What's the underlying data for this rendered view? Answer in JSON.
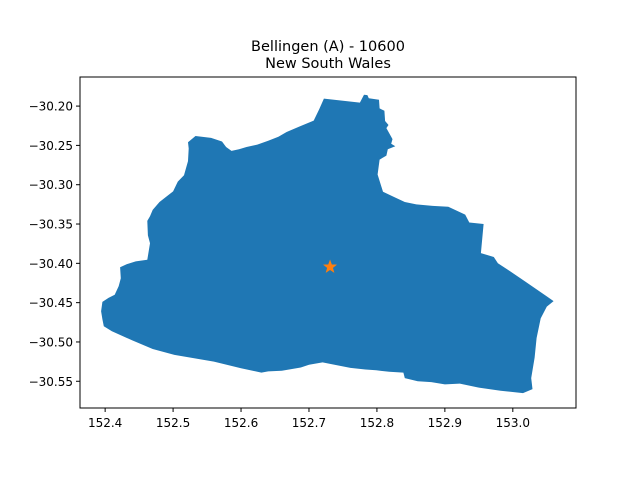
{
  "title": {
    "line1": "Bellingen (A) - 10600",
    "line2": "New South Wales"
  },
  "colors": {
    "region_fill": "#1f77b4",
    "marker": "#ff7f0e",
    "axes": "#000000",
    "background": "#ffffff"
  },
  "chart_data": {
    "type": "map",
    "grid": false,
    "xlim": [
      152.363,
      153.093
    ],
    "ylim": [
      -30.584,
      -30.163
    ],
    "x_ticks": [
      {
        "value": 152.4,
        "label": "152.4"
      },
      {
        "value": 152.5,
        "label": "152.5"
      },
      {
        "value": 152.6,
        "label": "152.6"
      },
      {
        "value": 152.7,
        "label": "152.7"
      },
      {
        "value": 152.8,
        "label": "152.8"
      },
      {
        "value": 152.9,
        "label": "152.9"
      },
      {
        "value": 153.0,
        "label": "153.0"
      }
    ],
    "y_ticks": [
      {
        "value": -30.2,
        "label": "−30.20"
      },
      {
        "value": -30.25,
        "label": "−30.25"
      },
      {
        "value": -30.3,
        "label": "−30.30"
      },
      {
        "value": -30.35,
        "label": "−30.35"
      },
      {
        "value": -30.4,
        "label": "−30.40"
      },
      {
        "value": -30.45,
        "label": "−30.45"
      },
      {
        "value": -30.5,
        "label": "−30.50"
      },
      {
        "value": -30.55,
        "label": "−30.55"
      }
    ],
    "region_outline": [
      [
        152.722,
        -30.1905
      ],
      [
        152.775,
        -30.1955
      ],
      [
        152.781,
        -30.1855
      ],
      [
        152.786,
        -30.186
      ],
      [
        152.788,
        -30.19
      ],
      [
        152.803,
        -30.192
      ],
      [
        152.804,
        -30.203
      ],
      [
        152.811,
        -30.206
      ],
      [
        152.812,
        -30.219
      ],
      [
        152.817,
        -30.224
      ],
      [
        152.814,
        -30.228
      ],
      [
        152.823,
        -30.242
      ],
      [
        152.821,
        -30.248
      ],
      [
        152.827,
        -30.251
      ],
      [
        152.816,
        -30.255
      ],
      [
        152.814,
        -30.263
      ],
      [
        152.804,
        -30.268
      ],
      [
        152.801,
        -30.287
      ],
      [
        152.809,
        -30.309
      ],
      [
        152.826,
        -30.316
      ],
      [
        152.841,
        -30.322
      ],
      [
        152.858,
        -30.325
      ],
      [
        152.882,
        -30.327
      ],
      [
        152.905,
        -30.328
      ],
      [
        152.93,
        -30.338
      ],
      [
        152.936,
        -30.348
      ],
      [
        152.957,
        -30.35
      ],
      [
        152.953,
        -30.387
      ],
      [
        152.972,
        -30.392
      ],
      [
        152.978,
        -30.4
      ],
      [
        152.996,
        -30.41
      ],
      [
        153.018,
        -30.423
      ],
      [
        153.05,
        -30.442
      ],
      [
        153.06,
        -30.448
      ],
      [
        153.05,
        -30.455
      ],
      [
        153.041,
        -30.47
      ],
      [
        153.035,
        -30.495
      ],
      [
        153.032,
        -30.52
      ],
      [
        153.027,
        -30.546
      ],
      [
        153.029,
        -30.56
      ],
      [
        153.015,
        -30.565
      ],
      [
        152.982,
        -30.562
      ],
      [
        152.95,
        -30.558
      ],
      [
        152.922,
        -30.553
      ],
      [
        152.9,
        -30.554
      ],
      [
        152.88,
        -30.551
      ],
      [
        152.86,
        -30.55
      ],
      [
        152.841,
        -30.546
      ],
      [
        152.839,
        -30.539
      ],
      [
        152.818,
        -30.538
      ],
      [
        152.799,
        -30.536
      ],
      [
        152.783,
        -30.535
      ],
      [
        152.761,
        -30.533
      ],
      [
        152.732,
        -30.528
      ],
      [
        152.72,
        -30.526
      ],
      [
        152.7,
        -30.529
      ],
      [
        152.688,
        -30.5325
      ],
      [
        152.66,
        -30.5365
      ],
      [
        152.64,
        -30.5375
      ],
      [
        152.63,
        -30.539
      ],
      [
        152.6,
        -30.5335
      ],
      [
        152.56,
        -30.525
      ],
      [
        152.502,
        -30.5165
      ],
      [
        152.47,
        -30.509
      ],
      [
        152.44,
        -30.498
      ],
      [
        152.41,
        -30.4865
      ],
      [
        152.398,
        -30.48
      ],
      [
        152.396,
        -30.471
      ],
      [
        152.394,
        -30.461
      ],
      [
        152.396,
        -30.449
      ],
      [
        152.405,
        -30.444
      ],
      [
        152.414,
        -30.44
      ],
      [
        152.42,
        -30.429
      ],
      [
        152.423,
        -30.419
      ],
      [
        152.422,
        -30.405
      ],
      [
        152.432,
        -30.401
      ],
      [
        152.445,
        -30.3975
      ],
      [
        152.462,
        -30.3955
      ],
      [
        152.466,
        -30.3745
      ],
      [
        152.463,
        -30.3645
      ],
      [
        152.462,
        -30.346
      ],
      [
        152.466,
        -30.34
      ],
      [
        152.47,
        -30.332
      ],
      [
        152.48,
        -30.322
      ],
      [
        152.491,
        -30.3145
      ],
      [
        152.5,
        -30.3085
      ],
      [
        152.507,
        -30.296
      ],
      [
        152.516,
        -30.288
      ],
      [
        152.522,
        -30.27
      ],
      [
        152.523,
        -30.254
      ],
      [
        152.522,
        -30.246
      ],
      [
        152.533,
        -30.238
      ],
      [
        152.556,
        -30.2405
      ],
      [
        152.572,
        -30.245
      ],
      [
        152.578,
        -30.252
      ],
      [
        152.586,
        -30.257
      ],
      [
        152.597,
        -30.255
      ],
      [
        152.608,
        -30.252
      ],
      [
        152.624,
        -30.249
      ],
      [
        152.64,
        -30.244
      ],
      [
        152.655,
        -30.239
      ],
      [
        152.667,
        -30.233
      ],
      [
        152.686,
        -30.226
      ],
      [
        152.707,
        -30.2185
      ],
      [
        152.715,
        -30.204
      ]
    ],
    "marker": {
      "x": 152.731,
      "y": -30.4045,
      "symbol": "star"
    }
  }
}
